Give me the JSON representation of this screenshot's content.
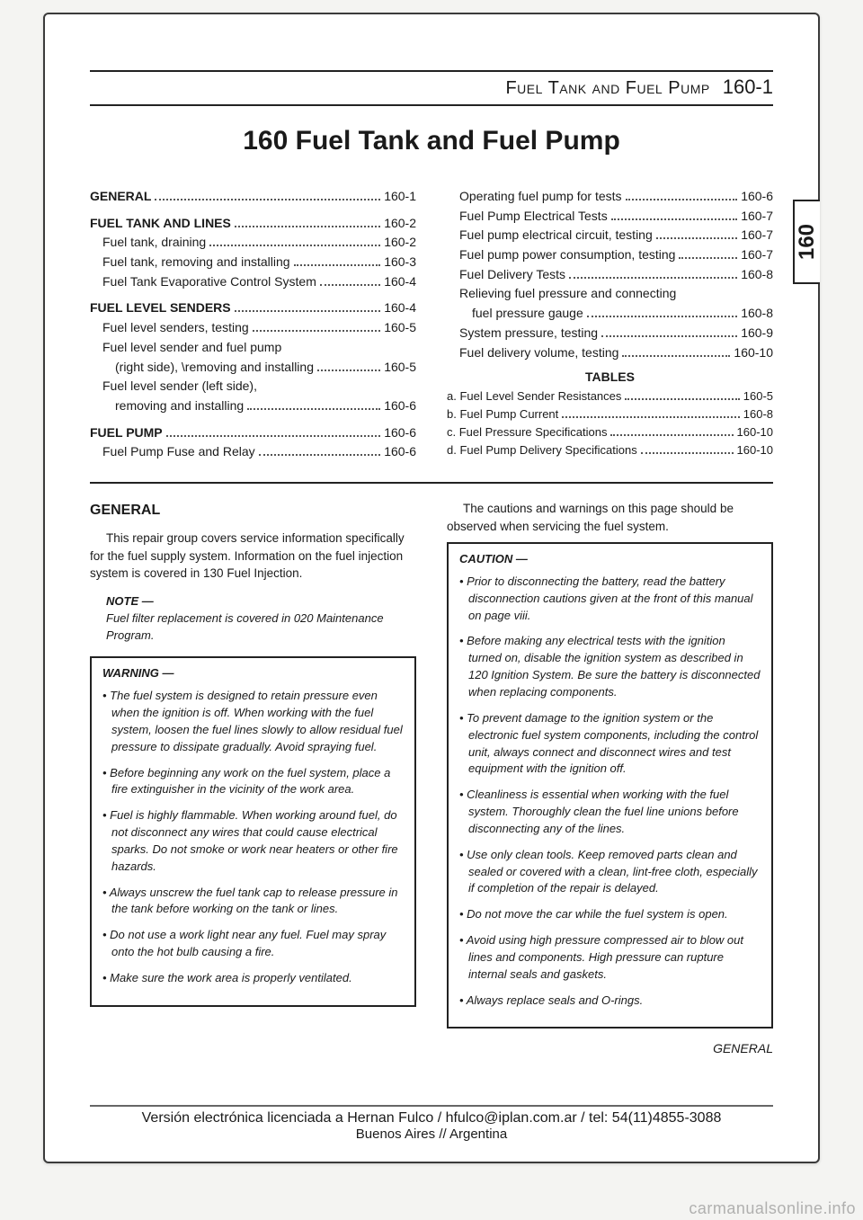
{
  "header": {
    "running_title": "Fuel Tank and Fuel Pump",
    "page_ref": "160-1"
  },
  "chapter_title": "160 Fuel Tank and Fuel Pump",
  "side_tab": "160",
  "toc_left": [
    {
      "type": "head",
      "label": "GENERAL",
      "page": "160-1"
    },
    {
      "type": "gap"
    },
    {
      "type": "head",
      "label": "FUEL TANK AND LINES",
      "page": "160-2"
    },
    {
      "type": "sub",
      "label": "Fuel tank, draining",
      "page": "160-2"
    },
    {
      "type": "sub",
      "label": "Fuel tank, removing and installing",
      "page": "160-3"
    },
    {
      "type": "sub",
      "label": "Fuel Tank Evaporative Control System",
      "page": "160-4"
    },
    {
      "type": "gap"
    },
    {
      "type": "head",
      "label": "FUEL LEVEL SENDERS",
      "page": "160-4"
    },
    {
      "type": "sub",
      "label": "Fuel level senders, testing",
      "page": "160-5"
    },
    {
      "type": "multi",
      "line1": "Fuel level sender and fuel pump",
      "line2": "(right side), \\removing and installing",
      "page": "160-5"
    },
    {
      "type": "multi",
      "line1": "Fuel level sender (left side),",
      "line2": "removing and installing",
      "page": "160-6"
    },
    {
      "type": "gap"
    },
    {
      "type": "head",
      "label": "FUEL PUMP",
      "page": "160-6"
    },
    {
      "type": "sub",
      "label": "Fuel Pump Fuse and Relay",
      "page": "160-6"
    }
  ],
  "toc_right": [
    {
      "type": "sub",
      "label": "Operating fuel pump for tests",
      "page": "160-6"
    },
    {
      "type": "sub",
      "label": "Fuel Pump Electrical Tests",
      "page": "160-7"
    },
    {
      "type": "sub",
      "label": "Fuel pump electrical circuit, testing",
      "page": "160-7"
    },
    {
      "type": "sub",
      "label": "Fuel pump power consumption, testing",
      "page": "160-7"
    },
    {
      "type": "sub",
      "label": "Fuel Delivery Tests",
      "page": "160-8"
    },
    {
      "type": "multi",
      "line1": "Relieving fuel pressure and connecting",
      "line2": "fuel pressure gauge",
      "page": "160-8"
    },
    {
      "type": "sub",
      "label": "System pressure, testing",
      "page": "160-9"
    },
    {
      "type": "sub",
      "label": "Fuel delivery volume, testing",
      "page": "160-10"
    }
  ],
  "tables_heading": "TABLES",
  "tables_list": [
    {
      "label": "a. Fuel Level Sender Resistances",
      "page": "160-5"
    },
    {
      "label": "b. Fuel Pump Current",
      "page": "160-8"
    },
    {
      "label": "c. Fuel Pressure Specifications",
      "page": "160-10"
    },
    {
      "label": "d. Fuel Pump Delivery Specifications",
      "page": "160-10"
    }
  ],
  "section_heading": "GENERAL",
  "intro_left": "This repair group covers service information specifically for the fuel supply system. Information on the fuel injection system is covered in 130 Fuel Injection.",
  "intro_right": "The cautions and warnings on this page should be observed when servicing the fuel system.",
  "note": {
    "title": "NOTE —",
    "text": "Fuel filter replacement is covered in 020 Maintenance Program."
  },
  "warning": {
    "title": "WARNING —",
    "items": [
      "The fuel system is designed to retain pressure even when the ignition is off. When working with the fuel system, loosen the fuel lines slowly to allow residual fuel pressure to dissipate gradually. Avoid spraying fuel.",
      "Before beginning any work on the fuel system, place a fire extinguisher in the vicinity of the work area.",
      "Fuel is highly flammable. When working around fuel, do not disconnect any wires that could cause electrical sparks. Do not smoke or work near heaters or other fire hazards.",
      "Always unscrew the fuel tank cap to release pressure in the tank before working on the tank or lines.",
      "Do not use a work light near any fuel. Fuel may spray onto the hot bulb causing a fire.",
      "Make sure the work area is properly ventilated."
    ]
  },
  "caution": {
    "title": "CAUTION —",
    "items": [
      "Prior to disconnecting the battery, read the battery disconnection cautions given at the front of this manual on page viii.",
      "Before making any electrical tests with the ignition turned on, disable the ignition system as described in 120 Ignition System. Be sure the battery is disconnected when replacing components.",
      "To prevent damage to the ignition system or the electronic fuel system components, including the control unit, always connect and disconnect wires and test equipment with the ignition off.",
      "Cleanliness is essential when working with the fuel system. Thoroughly clean the fuel line unions before disconnecting any of the lines.",
      "Use only clean tools. Keep removed parts clean and sealed or covered with a clean, lint-free cloth, especially if completion of the repair is delayed.",
      "Do not move the car while the fuel system is open.",
      "Avoid using high pressure compressed air to blow out lines and components. High pressure can rupture internal seals and gaskets.",
      "Always replace seals and O-rings."
    ]
  },
  "footer_section": "GENERAL",
  "license": {
    "line1": "Versión electrónica licenciada a Hernan Fulco / hfulco@iplan.com.ar / tel: 54(11)4855-3088",
    "line2": "Buenos Aires // Argentina"
  },
  "watermark": "carmanualsonline.info",
  "colors": {
    "page_bg": "#ffffff",
    "body_bg": "#f4f4f2",
    "rule": "#222222",
    "text": "#1a1a1a",
    "watermark": "rgba(120,120,120,0.55)"
  }
}
